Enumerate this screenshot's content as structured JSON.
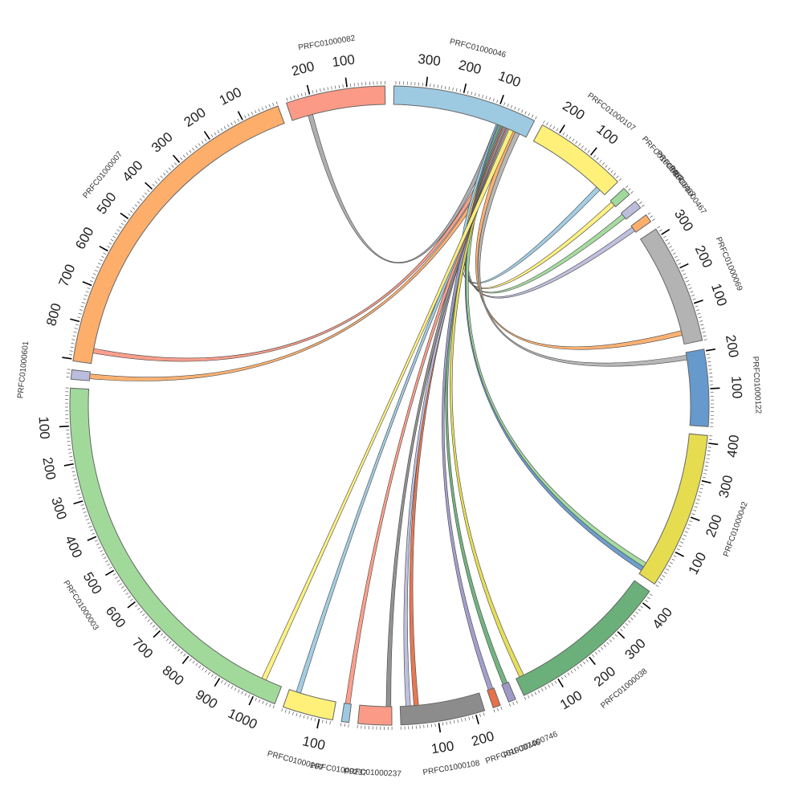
{
  "chart_data": {
    "type": "chord",
    "title": "",
    "contigs": [
      {
        "id": "c082",
        "name": "PRFC01000082",
        "length": 265,
        "color": "#fb9a86",
        "ticks": [
          100,
          200
        ]
      },
      {
        "id": "c046",
        "name": "PRFC01000046",
        "length": 385,
        "color": "#9ecae1",
        "ticks": [
          100,
          200,
          300
        ]
      },
      {
        "id": "c107",
        "name": "PRFC01000107",
        "length": 250,
        "color": "#fff07a",
        "ticks": [
          100,
          200
        ]
      },
      {
        "id": "s1",
        "name": "PRFC01000467",
        "length": 22,
        "color": "#a1d99b",
        "ticks": []
      },
      {
        "id": "s2",
        "name": "PRFC01000467",
        "length": 22,
        "color": "#bcbddc",
        "ticks": []
      },
      {
        "id": "s3",
        "name": "PRFC01000467",
        "length": 22,
        "color": "#fdae6b",
        "ticks": []
      },
      {
        "id": "c069",
        "name": "PRFC01000069",
        "length": 320,
        "color": "#b3b3b3",
        "ticks": [
          100,
          200,
          300
        ]
      },
      {
        "id": "c122",
        "name": "PRFC01000122",
        "length": 205,
        "color": "#6699cc",
        "ticks": [
          100,
          200
        ]
      },
      {
        "id": "c042",
        "name": "PRFC01000042",
        "length": 420,
        "color": "#e6dc50",
        "ticks": [
          100,
          200,
          300,
          400
        ]
      },
      {
        "id": "c038",
        "name": "PRFC01000038",
        "length": 435,
        "color": "#6bb07a",
        "ticks": [
          100,
          200,
          300,
          400
        ]
      },
      {
        "id": "s4",
        "name": "PRFC01000746",
        "length": 20,
        "color": "#9e9ac8",
        "ticks": []
      },
      {
        "id": "s5",
        "name": "PRFC01000746",
        "length": 20,
        "color": "#e6714a",
        "ticks": []
      },
      {
        "id": "c108",
        "name": "PRFC01000108",
        "length": 225,
        "color": "#8c8c8c",
        "ticks": [
          100,
          200
        ]
      },
      {
        "id": "c237",
        "name": "PRFC01000237",
        "length": 90,
        "color": "#fb9a86",
        "ticks": []
      },
      {
        "id": "s6",
        "name": "PRFC01000237",
        "length": 20,
        "color": "#9ecae1",
        "ticks": []
      },
      {
        "id": "c107b",
        "name": "PRFC01000107",
        "length": 135,
        "color": "#fff07a",
        "ticks": [
          100
        ]
      },
      {
        "id": "c003",
        "name": "PRFC01000003",
        "length": 1060,
        "color": "#a1d99b",
        "ticks": [
          100,
          200,
          300,
          400,
          500,
          600,
          700,
          800,
          900,
          1000
        ]
      },
      {
        "id": "s7",
        "name": "PRFC01000601",
        "length": 25,
        "color": "#bcbddc",
        "ticks": []
      },
      {
        "id": "c007",
        "name": "PRFC01000007",
        "length": 905,
        "color": "#fdae6b",
        "ticks": [
          100,
          200,
          300,
          400,
          500,
          600,
          700,
          800
        ]
      }
    ],
    "links": [
      {
        "from": "c046",
        "fpos": 0.78,
        "to": "c082",
        "tpos": 0.2,
        "color": "#aaaaaa"
      },
      {
        "from": "c046",
        "fpos": 0.84,
        "to": "c007",
        "tpos": 0.04,
        "color": "#fb9a86"
      },
      {
        "from": "c046",
        "fpos": 0.88,
        "to": "s7",
        "tpos": 0.5,
        "color": "#fdae6b"
      },
      {
        "from": "c046",
        "fpos": 0.78,
        "to": "c107",
        "tpos": 0.9,
        "color": "#9ecae1"
      },
      {
        "from": "c046",
        "fpos": 0.8,
        "to": "s1",
        "tpos": 0.5,
        "color": "#fff07a"
      },
      {
        "from": "c046",
        "fpos": 0.81,
        "to": "s2",
        "tpos": 0.5,
        "color": "#a1d99b"
      },
      {
        "from": "c046",
        "fpos": 0.82,
        "to": "s3",
        "tpos": 0.5,
        "color": "#bcbddc"
      },
      {
        "from": "c046",
        "fpos": 0.9,
        "to": "c069",
        "tpos": 0.9,
        "color": "#fdae6b"
      },
      {
        "from": "c046",
        "fpos": 0.93,
        "to": "c122",
        "tpos": 0.07,
        "color": "#b3b3b3"
      },
      {
        "from": "c046",
        "fpos": 0.79,
        "to": "c042",
        "tpos": 0.96,
        "color": "#6699cc"
      },
      {
        "from": "c046",
        "fpos": 0.8,
        "to": "c042",
        "tpos": 0.93,
        "color": "#a1d99b"
      },
      {
        "from": "c046",
        "fpos": 0.83,
        "to": "c038",
        "tpos": 0.96,
        "color": "#e6dc50"
      },
      {
        "from": "c046",
        "fpos": 0.81,
        "to": "s4",
        "tpos": 0.5,
        "color": "#6bb07a"
      },
      {
        "from": "c046",
        "fpos": 0.82,
        "to": "s5",
        "tpos": 0.5,
        "color": "#9e9ac8"
      },
      {
        "from": "c046",
        "fpos": 0.83,
        "to": "c108",
        "tpos": 0.8,
        "color": "#e6714a"
      },
      {
        "from": "c046",
        "fpos": 0.84,
        "to": "c108",
        "tpos": 0.9,
        "color": "#bcbddc"
      },
      {
        "from": "c046",
        "fpos": 0.85,
        "to": "c237",
        "tpos": 0.1,
        "color": "#8c8c8c"
      },
      {
        "from": "c046",
        "fpos": 0.86,
        "to": "s6",
        "tpos": 0.5,
        "color": "#fb9a86"
      },
      {
        "from": "c046",
        "fpos": 0.87,
        "to": "c107b",
        "tpos": 0.8,
        "color": "#9ecae1"
      },
      {
        "from": "c046",
        "fpos": 0.88,
        "to": "c003",
        "tpos": 0.05,
        "color": "#fff07a"
      }
    ]
  }
}
